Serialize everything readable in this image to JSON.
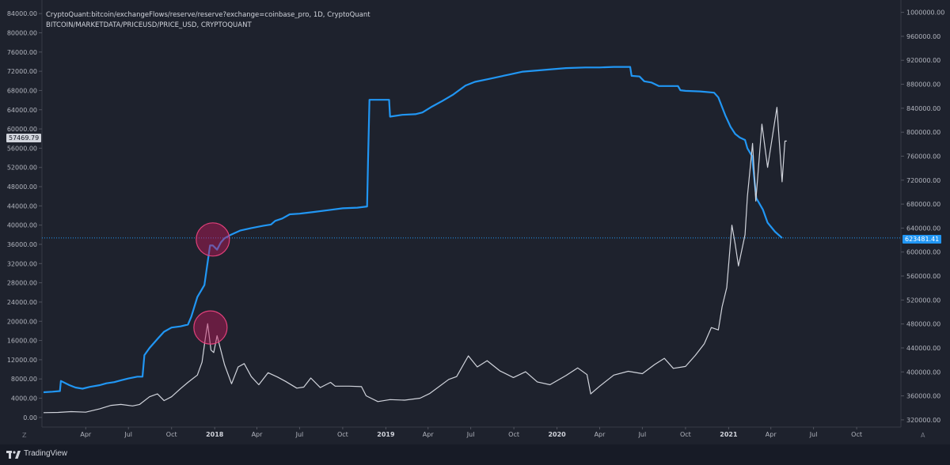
{
  "series_titles": {
    "reserve": "CryptoQuant:bitcoin/exchangeFlows/reserve/reserve?exchange=coinbase_pro, 1D, CryptoQuant",
    "price": "BITCOIN/MARKETDATA/PRICEUSD/PRICE_USD, CRYPTOQUANT"
  },
  "price_tags": {
    "left": "57469.79",
    "right": "623481.41"
  },
  "footer": {
    "brand": "TradingView"
  },
  "corners": {
    "left": "Z",
    "right": "A"
  },
  "colors": {
    "background": "#1e222d",
    "reserve_line": "#2196f3",
    "price_line": "#d1d4dc",
    "highlight_circle": "#c2185b"
  },
  "chart_data": {
    "type": "line",
    "title": "",
    "x_axis": {
      "range": [
        "2017-01-01",
        "2021-12-31"
      ],
      "tick_labels": [
        {
          "label": "Apr",
          "date": "2017-04-01"
        },
        {
          "label": "Jul",
          "date": "2017-07-01"
        },
        {
          "label": "Oct",
          "date": "2017-10-01"
        },
        {
          "label": "2018",
          "date": "2018-01-01",
          "year": true
        },
        {
          "label": "Apr",
          "date": "2018-04-01"
        },
        {
          "label": "Jul",
          "date": "2018-07-01"
        },
        {
          "label": "Oct",
          "date": "2018-10-01"
        },
        {
          "label": "2019",
          "date": "2019-01-01",
          "year": true
        },
        {
          "label": "Apr",
          "date": "2019-04-01"
        },
        {
          "label": "Jul",
          "date": "2019-07-01"
        },
        {
          "label": "Oct",
          "date": "2019-10-01"
        },
        {
          "label": "2020",
          "date": "2020-01-01",
          "year": true
        },
        {
          "label": "Apr",
          "date": "2020-04-01"
        },
        {
          "label": "Jul",
          "date": "2020-07-01"
        },
        {
          "label": "Oct",
          "date": "2020-10-01"
        },
        {
          "label": "2021",
          "date": "2021-01-01",
          "year": true
        },
        {
          "label": "Apr",
          "date": "2021-04-01"
        },
        {
          "label": "Jul",
          "date": "2021-07-01"
        },
        {
          "label": "Oct",
          "date": "2021-10-01"
        }
      ]
    },
    "left_axis": {
      "ylim": [
        -2000,
        86000
      ],
      "tick_labels": [
        "0.00",
        "4000.00",
        "8000.00",
        "12000.00",
        "16000.00",
        "20000.00",
        "24000.00",
        "28000.00",
        "32000.00",
        "36000.00",
        "40000.00",
        "44000.00",
        "48000.00",
        "52000.00",
        "56000.00",
        "60000.00",
        "64000.00",
        "68000.00",
        "72000.00",
        "76000.00",
        "80000.00",
        "84000.00"
      ]
    },
    "right_axis": {
      "ylim": [
        308000,
        1014000
      ],
      "tick_labels": [
        "320000.00",
        "360000.00",
        "400000.00",
        "440000.00",
        "480000.00",
        "520000.00",
        "560000.00",
        "600000.00",
        "640000.00",
        "680000.00",
        "720000.00",
        "760000.00",
        "800000.00",
        "840000.00",
        "880000.00",
        "920000.00",
        "960000.00",
        "1000000.00"
      ]
    },
    "grid": false,
    "horizontal_line": {
      "axis": "right",
      "value": 623481.41
    },
    "series": [
      {
        "key": "reserve",
        "axis": "right",
        "points": [
          [
            "2017-01-01",
            366000
          ],
          [
            "2017-01-20",
            367000
          ],
          [
            "2017-02-05",
            368000
          ],
          [
            "2017-02-07",
            385000
          ],
          [
            "2017-02-25",
            378000
          ],
          [
            "2017-03-10",
            374000
          ],
          [
            "2017-03-25",
            372000
          ],
          [
            "2017-04-10",
            375000
          ],
          [
            "2017-05-01",
            378000
          ],
          [
            "2017-05-15",
            381000
          ],
          [
            "2017-06-01",
            383000
          ],
          [
            "2017-06-15",
            386000
          ],
          [
            "2017-07-01",
            389000
          ],
          [
            "2017-07-20",
            392000
          ],
          [
            "2017-07-31",
            392000
          ],
          [
            "2017-08-02",
            410000
          ],
          [
            "2017-08-04",
            428000
          ],
          [
            "2017-08-15",
            440000
          ],
          [
            "2017-09-01",
            455000
          ],
          [
            "2017-09-15",
            467000
          ],
          [
            "2017-10-01",
            474000
          ],
          [
            "2017-10-20",
            476000
          ],
          [
            "2017-11-05",
            479000
          ],
          [
            "2017-11-12",
            492000
          ],
          [
            "2017-11-25",
            525000
          ],
          [
            "2017-12-10",
            545000
          ],
          [
            "2017-12-22",
            611000
          ],
          [
            "2017-12-28",
            611000
          ],
          [
            "2018-01-06",
            604000
          ],
          [
            "2018-01-14",
            616000
          ],
          [
            "2018-01-22",
            623000
          ],
          [
            "2018-02-05",
            629000
          ],
          [
            "2018-02-25",
            636000
          ],
          [
            "2018-03-20",
            640000
          ],
          [
            "2018-04-15",
            644000
          ],
          [
            "2018-05-01",
            646000
          ],
          [
            "2018-05-10",
            652000
          ],
          [
            "2018-05-25",
            656000
          ],
          [
            "2018-06-10",
            663000
          ],
          [
            "2018-07-01",
            664000
          ],
          [
            "2018-08-01",
            667000
          ],
          [
            "2018-09-01",
            670000
          ],
          [
            "2018-10-01",
            673000
          ],
          [
            "2018-11-01",
            674000
          ],
          [
            "2018-11-22",
            676000
          ],
          [
            "2018-11-24",
            752000
          ],
          [
            "2018-11-27",
            854000
          ],
          [
            "2018-12-15",
            854000
          ],
          [
            "2019-01-08",
            854000
          ],
          [
            "2019-01-10",
            826000
          ],
          [
            "2019-02-05",
            829000
          ],
          [
            "2019-03-05",
            830000
          ],
          [
            "2019-03-20",
            833000
          ],
          [
            "2019-04-10",
            843000
          ],
          [
            "2019-05-01",
            852000
          ],
          [
            "2019-05-25",
            863000
          ],
          [
            "2019-06-20",
            878000
          ],
          [
            "2019-07-10",
            884000
          ],
          [
            "2019-08-10",
            889000
          ],
          [
            "2019-09-20",
            896000
          ],
          [
            "2019-10-20",
            901000
          ],
          [
            "2019-11-20",
            903000
          ],
          [
            "2019-12-20",
            905000
          ],
          [
            "2020-01-20",
            907000
          ],
          [
            "2020-03-01",
            908000
          ],
          [
            "2020-04-01",
            908000
          ],
          [
            "2020-05-01",
            909000
          ],
          [
            "2020-06-05",
            909000
          ],
          [
            "2020-06-08",
            894000
          ],
          [
            "2020-06-25",
            893000
          ],
          [
            "2020-07-05",
            885000
          ],
          [
            "2020-07-20",
            883000
          ],
          [
            "2020-08-05",
            877000
          ],
          [
            "2020-09-15",
            877000
          ],
          [
            "2020-09-20",
            870000
          ],
          [
            "2020-10-01",
            869000
          ],
          [
            "2020-11-01",
            868000
          ],
          [
            "2020-12-01",
            866000
          ],
          [
            "2020-12-10",
            858000
          ],
          [
            "2020-12-25",
            828000
          ],
          [
            "2021-01-05",
            809000
          ],
          [
            "2021-01-15",
            797000
          ],
          [
            "2021-01-25",
            791000
          ],
          [
            "2021-02-05",
            787000
          ],
          [
            "2021-02-10",
            773000
          ],
          [
            "2021-02-20",
            760000
          ],
          [
            "2021-03-01",
            690000
          ],
          [
            "2021-03-15",
            671000
          ],
          [
            "2021-03-25",
            649000
          ],
          [
            "2021-04-10",
            634000
          ],
          [
            "2021-04-25",
            623481
          ]
        ]
      },
      {
        "key": "price",
        "axis": "left",
        "points": [
          [
            "2017-01-01",
            1000
          ],
          [
            "2017-02-01",
            1050
          ],
          [
            "2017-03-01",
            1200
          ],
          [
            "2017-04-01",
            1100
          ],
          [
            "2017-05-01",
            1800
          ],
          [
            "2017-05-25",
            2500
          ],
          [
            "2017-06-15",
            2700
          ],
          [
            "2017-07-10",
            2400
          ],
          [
            "2017-07-25",
            2700
          ],
          [
            "2017-08-15",
            4300
          ],
          [
            "2017-09-01",
            4900
          ],
          [
            "2017-09-15",
            3500
          ],
          [
            "2017-10-01",
            4300
          ],
          [
            "2017-10-20",
            6000
          ],
          [
            "2017-11-05",
            7300
          ],
          [
            "2017-11-25",
            8800
          ],
          [
            "2017-12-05",
            11500
          ],
          [
            "2017-12-12",
            16500
          ],
          [
            "2017-12-17",
            19500
          ],
          [
            "2017-12-24",
            14000
          ],
          [
            "2017-12-30",
            13500
          ],
          [
            "2018-01-06",
            17000
          ],
          [
            "2018-01-14",
            14000
          ],
          [
            "2018-01-22",
            11000
          ],
          [
            "2018-02-06",
            7000
          ],
          [
            "2018-02-20",
            10500
          ],
          [
            "2018-03-05",
            11200
          ],
          [
            "2018-03-20",
            8500
          ],
          [
            "2018-04-05",
            6800
          ],
          [
            "2018-04-25",
            9300
          ],
          [
            "2018-05-15",
            8400
          ],
          [
            "2018-06-01",
            7500
          ],
          [
            "2018-06-25",
            6100
          ],
          [
            "2018-07-10",
            6300
          ],
          [
            "2018-07-25",
            8200
          ],
          [
            "2018-08-14",
            6200
          ],
          [
            "2018-09-05",
            7300
          ],
          [
            "2018-09-15",
            6500
          ],
          [
            "2018-10-15",
            6500
          ],
          [
            "2018-11-10",
            6400
          ],
          [
            "2018-11-20",
            4500
          ],
          [
            "2018-12-15",
            3300
          ],
          [
            "2019-01-10",
            3700
          ],
          [
            "2019-02-10",
            3600
          ],
          [
            "2019-03-15",
            4000
          ],
          [
            "2019-04-05",
            5000
          ],
          [
            "2019-05-15",
            7900
          ],
          [
            "2019-06-01",
            8500
          ],
          [
            "2019-06-26",
            12800
          ],
          [
            "2019-07-15",
            10500
          ],
          [
            "2019-08-05",
            11800
          ],
          [
            "2019-09-01",
            9700
          ],
          [
            "2019-09-30",
            8300
          ],
          [
            "2019-10-26",
            9500
          ],
          [
            "2019-11-20",
            7400
          ],
          [
            "2019-12-17",
            6800
          ],
          [
            "2020-01-20",
            8700
          ],
          [
            "2020-02-14",
            10300
          ],
          [
            "2020-03-05",
            8900
          ],
          [
            "2020-03-13",
            4900
          ],
          [
            "2020-04-01",
            6500
          ],
          [
            "2020-05-01",
            8800
          ],
          [
            "2020-06-01",
            9600
          ],
          [
            "2020-07-01",
            9100
          ],
          [
            "2020-07-27",
            11000
          ],
          [
            "2020-08-17",
            12300
          ],
          [
            "2020-09-05",
            10200
          ],
          [
            "2020-10-01",
            10600
          ],
          [
            "2020-10-22",
            12900
          ],
          [
            "2020-11-10",
            15300
          ],
          [
            "2020-11-25",
            18700
          ],
          [
            "2020-12-10",
            18200
          ],
          [
            "2020-12-18",
            23000
          ],
          [
            "2020-12-28",
            27000
          ],
          [
            "2021-01-08",
            40000
          ],
          [
            "2021-01-15",
            36000
          ],
          [
            "2021-01-22",
            31500
          ],
          [
            "2021-02-05",
            38000
          ],
          [
            "2021-02-10",
            46000
          ],
          [
            "2021-02-21",
            57000
          ],
          [
            "2021-02-28",
            45000
          ],
          [
            "2021-03-13",
            61000
          ],
          [
            "2021-03-25",
            52000
          ],
          [
            "2021-04-14",
            64500
          ],
          [
            "2021-04-25",
            49000
          ],
          [
            "2021-05-01",
            57500
          ],
          [
            "2021-05-05",
            57470
          ]
        ]
      }
    ],
    "annotations": [
      {
        "type": "circle",
        "near": "reserve",
        "date": "2017-12-28",
        "value_axis": "right",
        "value": 621000
      },
      {
        "type": "circle",
        "near": "price",
        "date": "2017-12-23",
        "value_axis": "left",
        "value": 18700
      }
    ]
  }
}
